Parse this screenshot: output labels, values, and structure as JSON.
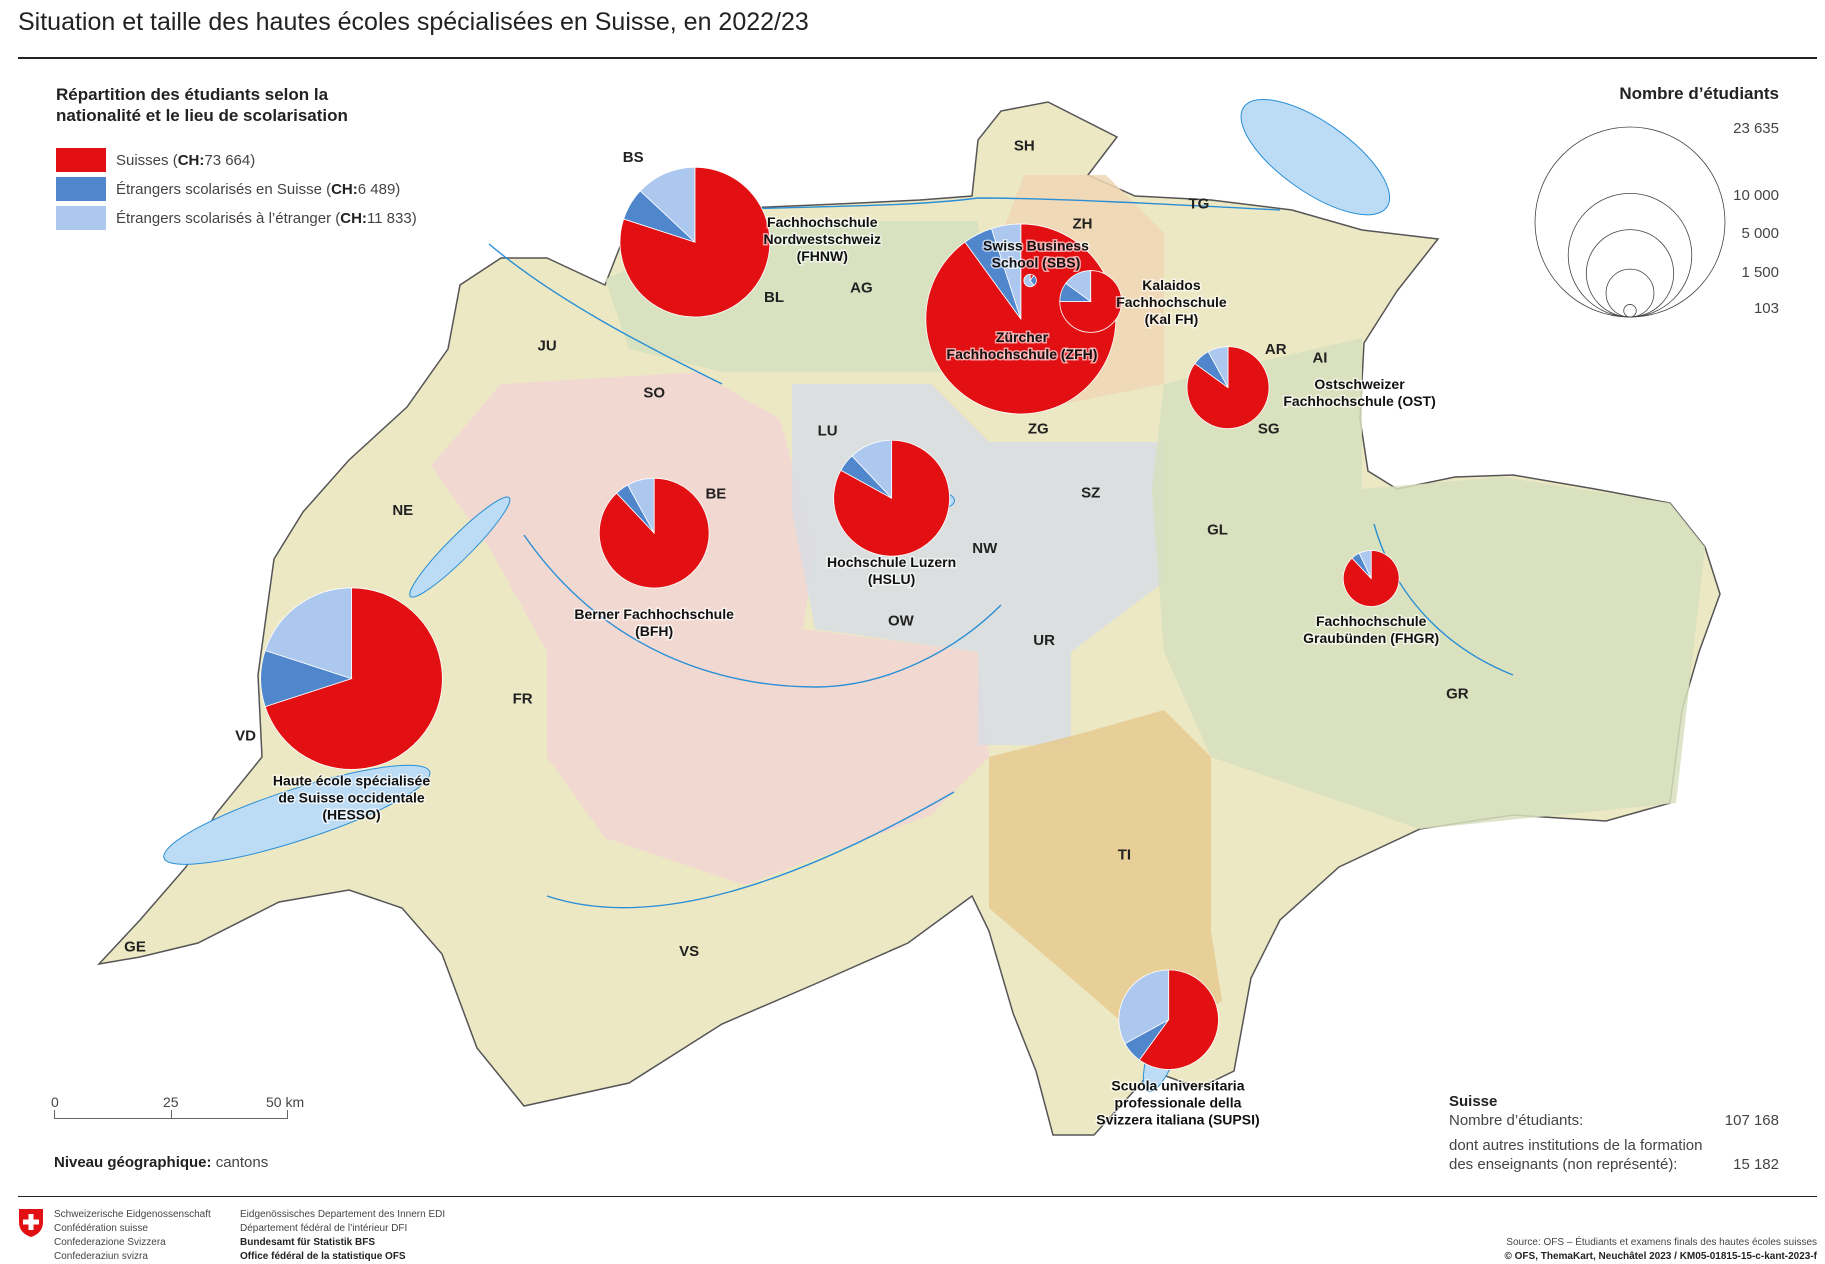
{
  "title": "Situation et taille des hautes écoles spécialisées en Suisse, en 2022/23",
  "legend": {
    "heading": "Répartition des étudiants selon la nationalité et le lieu de scolarisation",
    "items": [
      {
        "label": "Suisses (",
        "ch": "CH:",
        "value": " 73 664)",
        "color": "#e31013"
      },
      {
        "label": "Étrangers scolarisés en Suisse (",
        "ch": "CH:",
        "value": " 6 489)",
        "color": "#4f86cc"
      },
      {
        "label": "Étrangers scolarisés à l’étranger (",
        "ch": "CH:",
        "value": " 11 833)",
        "color": "#adc8ee"
      }
    ]
  },
  "size_legend": {
    "title": "Nombre d’étudiants",
    "values": [
      23635,
      10000,
      5000,
      1500,
      103
    ],
    "labels": [
      "23 635",
      "10 000",
      "5 000",
      "1 500",
      "103"
    ]
  },
  "cantons": [
    "SH",
    "BS",
    "ZH",
    "TG",
    "BL",
    "AG",
    "JU",
    "AR",
    "AI",
    "SO",
    "LU",
    "ZG",
    "SG",
    "BE",
    "SZ",
    "NE",
    "GL",
    "NW",
    "OW",
    "UR",
    "GR",
    "FR",
    "VD",
    "TI",
    "VS",
    "GE"
  ],
  "institutions": [
    {
      "name": [
        "Fachhochschule",
        "Nordwestschweiz",
        "(FHNW)"
      ],
      "students": 14700,
      "shares": [
        0.8,
        0.07,
        0.13
      ]
    },
    {
      "name": [
        "Zürcher",
        "Fachhochschule (ZFH)"
      ],
      "students": 23635,
      "shares": [
        0.9,
        0.05,
        0.05
      ]
    },
    {
      "name": [
        "Swiss Business",
        "School (SBS)"
      ],
      "students": 103,
      "shares": [
        0.1,
        0.3,
        0.6
      ]
    },
    {
      "name": [
        "Kalaidos",
        "Fachhochschule",
        "(Kal FH)"
      ],
      "students": 2500,
      "shares": [
        0.75,
        0.1,
        0.15
      ]
    },
    {
      "name": [
        "Ostschweizer",
        "Fachhochschule (OST)"
      ],
      "students": 4400,
      "shares": [
        0.85,
        0.07,
        0.08
      ]
    },
    {
      "name": [
        "Hochschule Luzern",
        "(HSLU)"
      ],
      "students": 8800,
      "shares": [
        0.83,
        0.05,
        0.12
      ]
    },
    {
      "name": [
        "Berner Fachhochschule",
        "(BFH)"
      ],
      "students": 7900,
      "shares": [
        0.88,
        0.04,
        0.08
      ]
    },
    {
      "name": [
        "Haute école spécialisée",
        "de Suisse occidentale",
        "(HESSO)"
      ],
      "students": 21600,
      "shares": [
        0.7,
        0.1,
        0.2
      ]
    },
    {
      "name": [
        "Fachhochschule",
        "Graubünden (FHGR)"
      ],
      "students": 2050,
      "shares": [
        0.88,
        0.05,
        0.07
      ]
    },
    {
      "name": [
        "Scuola universitaria",
        "professionale della",
        "Svizzera italiana (SUPSI)"
      ],
      "students": 6500,
      "shares": [
        0.6,
        0.07,
        0.33
      ]
    }
  ],
  "scale_bar": {
    "labels": [
      "0",
      "25",
      "50 km"
    ]
  },
  "niveau": {
    "label": "Niveau géographique:",
    "value": " cantons"
  },
  "summary": {
    "heading": "Suisse",
    "students_label": "Nombre d’étudiants:",
    "students_value": "107 168",
    "other_label": "dont autres institutions de la formation des enseignants (non représenté):",
    "other_value": "15 182"
  },
  "footer": {
    "confed": [
      "Schweizerische Eidgenossenschaft",
      "Confédération suisse",
      "Confederazione Svizzera",
      "Confederaziun svizra"
    ],
    "dept": [
      "Eidgenössisches Departement des Innern EDI",
      "Département fédéral de l’intérieur DFI",
      "Bundesamt für Statistik BFS",
      "Office fédéral de la statistique OFS"
    ],
    "source": "Source: OFS – Étudiants et examens finals des hautes écoles suisses",
    "copyright": "© OFS, ThemaKart, Neuchâtel 2023 / KM05-01815-15-c-kant-2023-f"
  },
  "colors": {
    "suisses": "#e31013",
    "etr_suisse": "#4f86cc",
    "etr_etranger": "#adc8ee",
    "lake": "#bcdcf5",
    "river": "#2a8fd6"
  }
}
